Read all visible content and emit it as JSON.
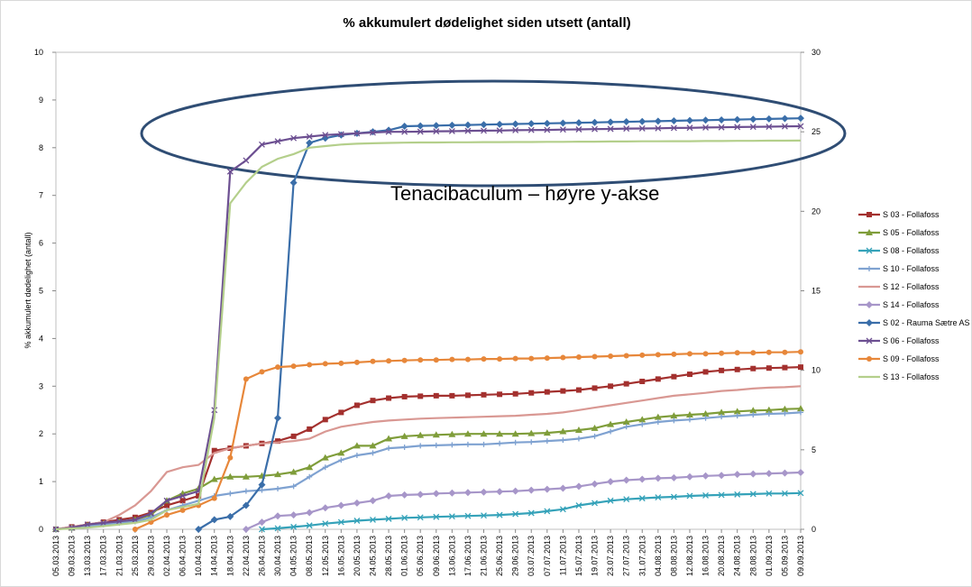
{
  "chart_data": {
    "type": "line",
    "title": "% akkumulert dødelighet siden utsett (antall)",
    "y_label": "% akkumulert dødelighet (antall)",
    "annotation": "Tenacibaculum – høyre y-akse",
    "categories": [
      "05.03.2013",
      "09.03.2013",
      "13.03.2013",
      "17.03.2013",
      "21.03.2013",
      "25.03.2013",
      "29.03.2013",
      "02.04.2013",
      "06.04.2013",
      "10.04.2013",
      "14.04.2013",
      "18.04.2013",
      "22.04.2013",
      "26.04.2013",
      "30.04.2013",
      "04.05.2013",
      "08.05.2013",
      "12.05.2013",
      "16.05.2013",
      "20.05.2013",
      "24.05.2013",
      "28.05.2013",
      "01.06.2013",
      "05.06.2013",
      "09.06.2013",
      "13.06.2013",
      "17.06.2013",
      "21.06.2013",
      "25.06.2013",
      "29.06.2013",
      "03.07.2013",
      "07.07.2013",
      "11.07.2013",
      "15.07.2013",
      "19.07.2013",
      "23.07.2013",
      "27.07.2013",
      "31.07.2013",
      "04.08.2013",
      "08.08.2013",
      "12.08.2013",
      "16.08.2013",
      "20.08.2013",
      "24.08.2013",
      "28.08.2013",
      "01.09.2013",
      "05.09.2013",
      "09.09.2013"
    ],
    "ylim": [
      0,
      10
    ],
    "yticks": [
      0,
      1,
      2,
      3,
      4,
      5,
      6,
      7,
      8,
      9,
      10
    ],
    "y2lim": [
      0,
      30
    ],
    "y2ticks": [
      0,
      5,
      10,
      15,
      20,
      25,
      30
    ],
    "legend": "right",
    "series": [
      {
        "name": "S 03 - Follafoss",
        "color": "#a3302e",
        "marker": "square",
        "values": [
          0,
          0.05,
          0.1,
          0.15,
          0.2,
          0.25,
          0.35,
          0.5,
          0.6,
          0.7,
          1.65,
          1.7,
          1.75,
          1.8,
          1.85,
          1.95,
          2.1,
          2.3,
          2.45,
          2.6,
          2.7,
          2.75,
          2.78,
          2.79,
          2.8,
          2.8,
          2.81,
          2.82,
          2.83,
          2.84,
          2.86,
          2.88,
          2.9,
          2.92,
          2.96,
          3.0,
          3.05,
          3.1,
          3.15,
          3.2,
          3.25,
          3.3,
          3.33,
          3.35,
          3.37,
          3.38,
          3.39,
          3.4
        ]
      },
      {
        "name": "S 05 - Follafoss",
        "color": "#7f9d3a",
        "marker": "triangle",
        "values": [
          0,
          0.03,
          0.08,
          0.12,
          0.16,
          0.2,
          0.3,
          0.6,
          0.75,
          0.85,
          1.05,
          1.1,
          1.1,
          1.12,
          1.15,
          1.2,
          1.3,
          1.5,
          1.6,
          1.75,
          1.75,
          1.9,
          1.95,
          1.97,
          1.98,
          1.99,
          2.0,
          2.0,
          2.0,
          2.0,
          2.01,
          2.02,
          2.05,
          2.08,
          2.12,
          2.2,
          2.25,
          2.3,
          2.35,
          2.38,
          2.4,
          2.42,
          2.45,
          2.47,
          2.49,
          2.5,
          2.52,
          2.53
        ]
      },
      {
        "name": "S 08 - Follafoss",
        "color": "#35a2b9",
        "marker": "x",
        "values": [
          null,
          null,
          null,
          null,
          null,
          null,
          null,
          null,
          null,
          null,
          null,
          null,
          null,
          0,
          0.02,
          0.05,
          0.08,
          0.12,
          0.15,
          0.18,
          0.2,
          0.22,
          0.24,
          0.25,
          0.26,
          0.27,
          0.28,
          0.29,
          0.3,
          0.32,
          0.34,
          0.38,
          0.42,
          0.5,
          0.55,
          0.6,
          0.63,
          0.65,
          0.67,
          0.68,
          0.7,
          0.71,
          0.72,
          0.73,
          0.74,
          0.75,
          0.75,
          0.76
        ]
      },
      {
        "name": "S 10 - Follafoss",
        "color": "#7fa2d1",
        "marker": "plus",
        "values": [
          0,
          0.03,
          0.07,
          0.1,
          0.13,
          0.16,
          0.25,
          0.4,
          0.5,
          0.6,
          0.7,
          0.75,
          0.8,
          0.82,
          0.85,
          0.9,
          1.1,
          1.3,
          1.45,
          1.55,
          1.6,
          1.7,
          1.72,
          1.75,
          1.76,
          1.77,
          1.78,
          1.78,
          1.8,
          1.82,
          1.83,
          1.85,
          1.87,
          1.9,
          1.95,
          2.05,
          2.15,
          2.2,
          2.25,
          2.28,
          2.3,
          2.33,
          2.36,
          2.38,
          2.4,
          2.42,
          2.43,
          2.45
        ]
      },
      {
        "name": "S 12 - Follafoss",
        "color": "#d99893",
        "marker": "none",
        "values": [
          0,
          0.05,
          0.1,
          0.15,
          0.3,
          0.5,
          0.8,
          1.2,
          1.3,
          1.35,
          1.6,
          1.7,
          1.75,
          1.8,
          1.82,
          1.85,
          1.9,
          2.05,
          2.15,
          2.2,
          2.25,
          2.28,
          2.3,
          2.32,
          2.33,
          2.34,
          2.35,
          2.36,
          2.37,
          2.38,
          2.4,
          2.42,
          2.45,
          2.5,
          2.55,
          2.6,
          2.65,
          2.7,
          2.75,
          2.8,
          2.83,
          2.86,
          2.9,
          2.92,
          2.95,
          2.97,
          2.98,
          3.0
        ]
      },
      {
        "name": "S 14 - Follafoss",
        "color": "#a796c9",
        "marker": "diamond",
        "values": [
          null,
          null,
          null,
          null,
          null,
          null,
          null,
          null,
          null,
          null,
          null,
          null,
          0,
          0.15,
          0.28,
          0.3,
          0.35,
          0.45,
          0.5,
          0.55,
          0.6,
          0.7,
          0.72,
          0.73,
          0.75,
          0.76,
          0.77,
          0.78,
          0.79,
          0.8,
          0.82,
          0.84,
          0.86,
          0.9,
          0.95,
          1.0,
          1.03,
          1.05,
          1.07,
          1.08,
          1.1,
          1.12,
          1.13,
          1.15,
          1.16,
          1.17,
          1.18,
          1.19
        ]
      },
      {
        "name": "S 02 - Rauma Sætre AS",
        "color": "#3a6ea9",
        "marker": "diamond",
        "axis": "y2",
        "values": [
          null,
          null,
          null,
          null,
          null,
          null,
          null,
          null,
          null,
          0,
          0.6,
          0.8,
          1.5,
          2.8,
          7,
          21.8,
          24.3,
          24.6,
          24.8,
          24.9,
          25.0,
          25.1,
          25.35,
          25.37,
          25.39,
          25.41,
          25.43,
          25.45,
          25.47,
          25.49,
          25.51,
          25.53,
          25.55,
          25.57,
          25.59,
          25.61,
          25.63,
          25.65,
          25.67,
          25.69,
          25.71,
          25.73,
          25.75,
          25.77,
          25.79,
          25.81,
          25.83,
          25.85
        ]
      },
      {
        "name": "S 06 - Follafoss",
        "color": "#6c4f91",
        "marker": "x",
        "axis": "y2",
        "values": [
          0,
          0.1,
          0.3,
          0.4,
          0.5,
          0.6,
          1.0,
          1.8,
          2.1,
          2.4,
          7.5,
          22.5,
          23.2,
          24.2,
          24.4,
          24.6,
          24.7,
          24.8,
          24.85,
          24.9,
          24.95,
          25.0,
          25.0,
          25.01,
          25.03,
          25.04,
          25.06,
          25.07,
          25.08,
          25.1,
          25.11,
          25.12,
          25.14,
          25.15,
          25.17,
          25.18,
          25.2,
          25.21,
          25.22,
          25.24,
          25.25,
          25.27,
          25.28,
          25.3,
          25.31,
          25.32,
          25.34,
          25.35
        ]
      },
      {
        "name": "S 09 - Follafoss",
        "color": "#e7873a",
        "marker": "circle",
        "values": [
          null,
          null,
          null,
          null,
          null,
          0,
          0.15,
          0.3,
          0.4,
          0.5,
          0.65,
          1.5,
          3.15,
          3.3,
          3.4,
          3.42,
          3.45,
          3.47,
          3.48,
          3.5,
          3.52,
          3.53,
          3.54,
          3.55,
          3.55,
          3.56,
          3.56,
          3.57,
          3.57,
          3.58,
          3.58,
          3.59,
          3.6,
          3.61,
          3.62,
          3.63,
          3.64,
          3.65,
          3.66,
          3.67,
          3.68,
          3.68,
          3.69,
          3.7,
          3.7,
          3.71,
          3.71,
          3.72
        ]
      },
      {
        "name": "S 13 - Follafoss",
        "color": "#b4cf8b",
        "marker": "none",
        "axis": "y2",
        "values": [
          0,
          0.05,
          0.1,
          0.2,
          0.3,
          0.4,
          0.6,
          1.2,
          1.4,
          1.6,
          7.0,
          20.5,
          21.8,
          22.8,
          23.3,
          23.6,
          24.0,
          24.1,
          24.2,
          24.25,
          24.28,
          24.3,
          24.32,
          24.33,
          24.33,
          24.34,
          24.34,
          24.35,
          24.35,
          24.36,
          24.36,
          24.37,
          24.37,
          24.38,
          24.38,
          24.39,
          24.39,
          24.4,
          24.4,
          24.41,
          24.41,
          24.42,
          24.42,
          24.43,
          24.43,
          24.44,
          24.44,
          24.45
        ]
      }
    ]
  }
}
